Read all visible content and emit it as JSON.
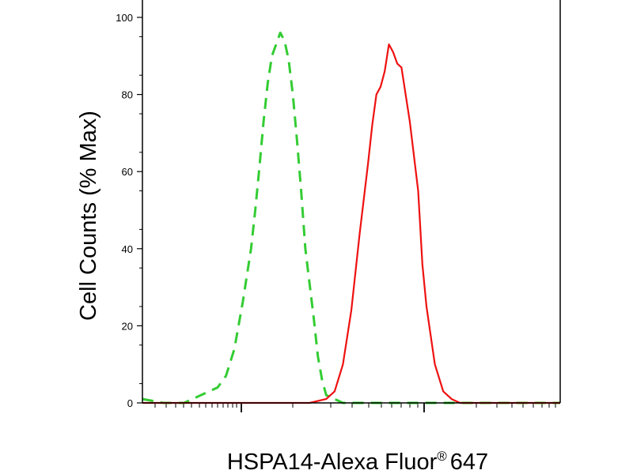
{
  "chart_data": {
    "type": "line",
    "title": "",
    "xlabel": "HSPA14-Alexa Fluor",
    "xlabel_superscript": "®",
    "xlabel_suffix": "647",
    "ylabel": "Cell Counts (% Max)",
    "xscale": "log",
    "xlim": [
      0,
      100
    ],
    "ylim": [
      0,
      100
    ],
    "yticks": [
      0,
      20,
      40,
      60,
      80,
      100
    ],
    "grid": false,
    "legend": "none",
    "series": [
      {
        "color": "#33cc33",
        "dash": true,
        "x": [
          0,
          5,
          10,
          14,
          18,
          20,
          22,
          24,
          26,
          27,
          28,
          29,
          30,
          31,
          32,
          33,
          34,
          35,
          36,
          37,
          38,
          39,
          41,
          42,
          43,
          44,
          46,
          48,
          50,
          52,
          56,
          65,
          100
        ],
        "y": [
          1,
          0,
          0,
          2,
          4,
          7,
          14,
          26,
          40,
          50,
          61,
          73,
          83,
          90,
          93,
          96,
          94,
          89,
          80,
          68,
          55,
          40,
          22,
          12,
          6,
          2,
          1,
          0,
          0,
          0,
          0,
          0,
          0
        ]
      },
      {
        "color": "#ee1111",
        "dash": false,
        "x": [
          0,
          40,
          44,
          46,
          48,
          50,
          52,
          54,
          55,
          56,
          57,
          58,
          59,
          60,
          61,
          62,
          64,
          66,
          67,
          68,
          70,
          72,
          74,
          76,
          80,
          100
        ],
        "y": [
          0,
          0,
          1,
          3,
          10,
          24,
          44,
          62,
          72,
          80,
          82,
          86,
          93,
          91,
          88,
          87,
          73,
          55,
          36,
          25,
          10,
          3,
          1,
          0,
          0,
          0
        ]
      }
    ]
  }
}
